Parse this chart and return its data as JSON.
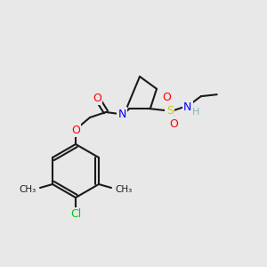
{
  "bg_color": "#e8e8e8",
  "bond_color": "#1a1a1a",
  "atom_colors": {
    "O": "#ff0000",
    "N": "#0000ff",
    "S": "#cccc00",
    "Cl": "#00cc00",
    "H": "#7ab8c8",
    "C": "#1a1a1a"
  },
  "figsize": [
    3.0,
    3.0
  ],
  "dpi": 100
}
